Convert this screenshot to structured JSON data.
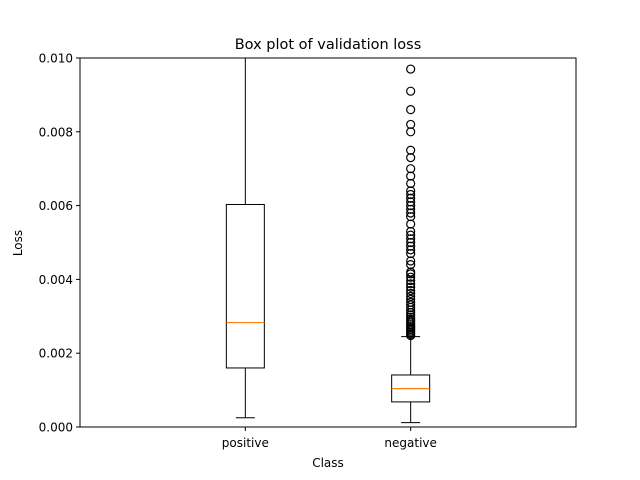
{
  "chart_data": {
    "type": "boxplot",
    "title": "Box plot of validation loss",
    "xlabel": "Class",
    "ylabel": "Loss",
    "ylim": [
      0,
      0.01
    ],
    "yticks": [
      0.0,
      0.002,
      0.004,
      0.006,
      0.008,
      0.01
    ],
    "ytick_labels": [
      "0.000",
      "0.002",
      "0.004",
      "0.006",
      "0.008",
      "0.010"
    ],
    "categories": [
      "positive",
      "negative"
    ],
    "grid": false,
    "boxes": [
      {
        "category": "positive",
        "whisker_low": 0.00025,
        "q1": 0.0016,
        "median": 0.00283,
        "q3": 0.00603,
        "whisker_high": 0.0104,
        "outliers": []
      },
      {
        "category": "negative",
        "whisker_low": 0.00012,
        "q1": 0.00068,
        "median": 0.00104,
        "q3": 0.00141,
        "whisker_high": 0.00245,
        "outliers": [
          0.00248,
          0.00252,
          0.00256,
          0.0026,
          0.00264,
          0.00268,
          0.00272,
          0.00277,
          0.00282,
          0.00287,
          0.00292,
          0.00298,
          0.00304,
          0.0031,
          0.00317,
          0.00324,
          0.00331,
          0.00338,
          0.00346,
          0.00354,
          0.00362,
          0.0037,
          0.00379,
          0.00388,
          0.00397,
          0.00406,
          0.00415,
          0.0042,
          0.0044,
          0.0045,
          0.0047,
          0.0048,
          0.0049,
          0.005,
          0.0051,
          0.0052,
          0.0053,
          0.0055,
          0.0057,
          0.0058,
          0.0059,
          0.006,
          0.0061,
          0.0062,
          0.0063,
          0.0064,
          0.0066,
          0.0068,
          0.007,
          0.0073,
          0.0075,
          0.008,
          0.0082,
          0.0086,
          0.0091,
          0.0097
        ]
      }
    ],
    "colors": {
      "box": "#000000",
      "median": "#ff7f0e",
      "outlier": "#000000"
    }
  }
}
